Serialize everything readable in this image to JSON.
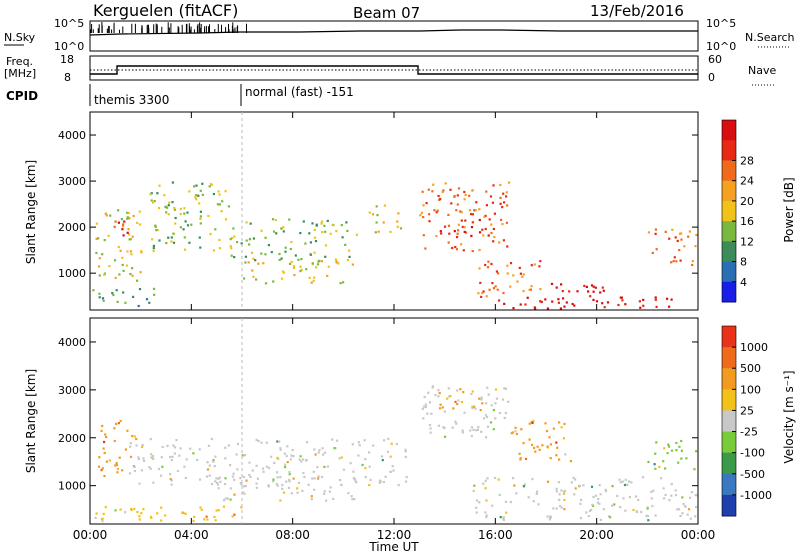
{
  "header": {
    "title": "Kerguelen (fitACF)",
    "beam": "Beam 07",
    "date": "13/Feb/2016"
  },
  "top_panels": {
    "nsky_label": "N.Sky",
    "nsky_ticks": [
      "10^5",
      "10^0"
    ],
    "nsearch_label": "N.Search",
    "nsearch_ticks": [
      "10^5",
      "10^0"
    ],
    "freq_label_1": "Freq.",
    "freq_label_2": "[MHz]",
    "freq_ticks": [
      "18",
      "8"
    ],
    "nave_label": "Nave",
    "nave_ticks": [
      "60",
      "0"
    ],
    "cpid_label": "CPID",
    "cpid_entries": [
      {
        "name": "themis 3300",
        "start_hour": 0
      },
      {
        "name": "normal (fast) -151",
        "start_hour": 6.0
      }
    ]
  },
  "chart_data": [
    {
      "type": "heatmap",
      "panel": "power",
      "ylabel": "Slant Range [km]",
      "xlabel": "",
      "x_ticks": [
        "00:00",
        "04:00",
        "08:00",
        "12:00",
        "16:00",
        "20:00",
        "00:00"
      ],
      "y_ticks": [
        1000,
        2000,
        3000,
        4000
      ],
      "ylim": [
        200,
        4500
      ],
      "xlim_hours": [
        0,
        24
      ],
      "colorbar": {
        "label": "Power [dB]",
        "ticks": [
          "4",
          "8",
          "12",
          "16",
          "20",
          "24",
          "28"
        ],
        "colors": [
          "#1820e8",
          "#2a6fb4",
          "#3b8c5a",
          "#7ab840",
          "#f0c21a",
          "#f5a020",
          "#f06a1c",
          "#e82a14",
          "#d80d10"
        ]
      },
      "blobs": [
        {
          "t0": 0.0,
          "t1": 2.5,
          "r0": 300,
          "r1": 700,
          "level": 2
        },
        {
          "t0": 0.2,
          "t1": 2.0,
          "r0": 800,
          "r1": 2400,
          "level": 4
        },
        {
          "t0": 0.8,
          "t1": 1.5,
          "r0": 1600,
          "r1": 2200,
          "level": 7
        },
        {
          "t0": 2.3,
          "t1": 5.5,
          "r0": 1500,
          "r1": 3000,
          "level": 3
        },
        {
          "t0": 5.5,
          "t1": 10.5,
          "r0": 1300,
          "r1": 2200,
          "level": 3
        },
        {
          "t0": 6.0,
          "t1": 10.5,
          "r0": 800,
          "r1": 1300,
          "level": 4
        },
        {
          "t0": 11.0,
          "t1": 12.3,
          "r0": 1900,
          "r1": 2500,
          "level": 4
        },
        {
          "t0": 13.0,
          "t1": 16.5,
          "r0": 1500,
          "r1": 3000,
          "level": 6
        },
        {
          "t0": 13.8,
          "t1": 15.8,
          "r0": 1800,
          "r1": 2200,
          "level": 8
        },
        {
          "t0": 15.2,
          "t1": 17.8,
          "r0": 500,
          "r1": 1300,
          "level": 6
        },
        {
          "t0": 16.0,
          "t1": 23.0,
          "r0": 200,
          "r1": 500,
          "level": 8
        },
        {
          "t0": 18.0,
          "t1": 20.5,
          "r0": 300,
          "r1": 800,
          "level": 8
        },
        {
          "t0": 22.0,
          "t1": 24.0,
          "r0": 1200,
          "r1": 2000,
          "level": 6
        }
      ]
    },
    {
      "type": "heatmap",
      "panel": "velocity",
      "ylabel": "Slant Range [km]",
      "xlabel": "Time UT",
      "x_ticks": [
        "00:00",
        "04:00",
        "08:00",
        "12:00",
        "16:00",
        "20:00",
        "00:00"
      ],
      "y_ticks": [
        1000,
        2000,
        3000,
        4000
      ],
      "ylim": [
        200,
        4500
      ],
      "xlim_hours": [
        0,
        24
      ],
      "colorbar": {
        "label": "Velocity [m s⁻¹]",
        "ticks": [
          "1000",
          "500",
          "100",
          "25",
          "-25",
          "-100",
          "-500",
          "-1000"
        ],
        "colors": [
          "#1f3fae",
          "#3a78c0",
          "#3a9a4a",
          "#7acb3a",
          "#c8c8c8",
          "#f2c21a",
          "#f39a20",
          "#f06a1c",
          "#e8321a"
        ]
      },
      "blobs": [
        {
          "t0": 0.0,
          "t1": 6.0,
          "r0": 200,
          "r1": 600,
          "color": 5
        },
        {
          "t0": 0.3,
          "t1": 1.8,
          "r0": 1200,
          "r1": 2400,
          "color": 6
        },
        {
          "t0": 1.5,
          "t1": 12.5,
          "r0": 1000,
          "r1": 2000,
          "color": 4
        },
        {
          "t0": 5.0,
          "t1": 10.5,
          "r0": 700,
          "r1": 1200,
          "color": 4
        },
        {
          "t0": 13.0,
          "t1": 16.5,
          "r0": 2000,
          "r1": 3100,
          "color": 4
        },
        {
          "t0": 13.7,
          "t1": 15.6,
          "r0": 2600,
          "r1": 3100,
          "color": 6
        },
        {
          "t0": 15.0,
          "t1": 24.0,
          "r0": 300,
          "r1": 1200,
          "color": 4
        },
        {
          "t0": 16.5,
          "t1": 19.0,
          "r0": 1500,
          "r1": 2400,
          "color": 6
        },
        {
          "t0": 22.0,
          "t1": 24.0,
          "r0": 1300,
          "r1": 2000,
          "color": 3
        }
      ]
    }
  ]
}
